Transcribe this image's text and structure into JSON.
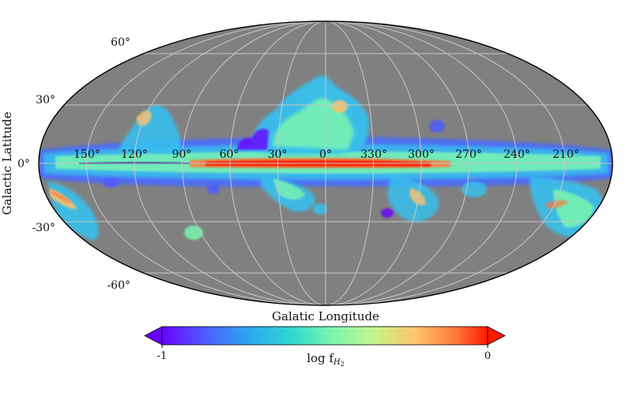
{
  "map": {
    "projection": "Mollweide",
    "background_color": "#808080",
    "grid_color": "#c8c8c8",
    "x_axis_label": "Galatic Longitude",
    "y_axis_label": "Galactic Latitude",
    "longitude_ticks": [
      "150°",
      "120°",
      "90°",
      "60°",
      "30°",
      "0°",
      "330°",
      "300°",
      "270°",
      "240°",
      "210°"
    ],
    "latitude_ticks": [
      "60°",
      "30°",
      "0°",
      "-30°",
      "-60°"
    ]
  },
  "colorbar": {
    "label": "log f",
    "label_subscript": "H",
    "label_subscript2": "2",
    "min_label": "-1",
    "max_label": "0",
    "colormap": "rainbow",
    "colors": [
      "#6a00ff",
      "#4f5cff",
      "#2aa8f0",
      "#30d8d0",
      "#7af5b0",
      "#c7f58a",
      "#ffc46a",
      "#ff7a3a",
      "#ff1a00"
    ]
  }
}
